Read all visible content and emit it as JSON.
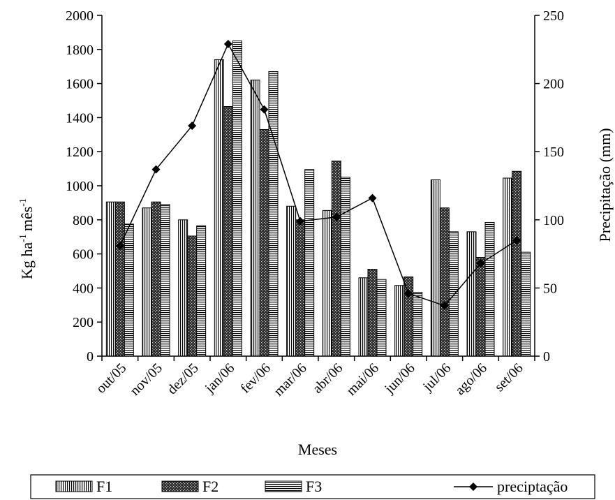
{
  "chart_data": {
    "type": "bar",
    "categories": [
      "out/05",
      "nov/05",
      "dez/05",
      "jan/06",
      "fev/06",
      "mar/06",
      "abr/06",
      "mai/06",
      "jun/06",
      "jul/06",
      "ago/06",
      "set/06"
    ],
    "series": [
      {
        "name": "F1",
        "values": [
          905,
          870,
          800,
          1740,
          1620,
          880,
          855,
          460,
          415,
          1035,
          730,
          1045
        ]
      },
      {
        "name": "F2",
        "values": [
          905,
          905,
          705,
          1465,
          1330,
          800,
          1145,
          510,
          465,
          870,
          580,
          1085
        ]
      },
      {
        "name": "F3",
        "values": [
          775,
          890,
          765,
          1850,
          1670,
          1095,
          1050,
          450,
          375,
          730,
          785,
          610
        ]
      }
    ],
    "line_series": {
      "name": "preciptação",
      "axis": "right",
      "values": [
        81,
        137,
        169,
        229,
        181,
        99,
        102,
        116,
        46,
        37,
        68,
        85
      ]
    },
    "xlabel": "Meses",
    "ylabel_left": "Kg ha-1 mês-1",
    "ylabel_left_parts": {
      "kg": "Kg ha",
      "sup1": "-1",
      "mes": "mês",
      "sup2": "-1"
    },
    "ylabel_right": "Precipitação (mm)",
    "ylim_left": [
      0,
      2000
    ],
    "ylim_right": [
      0,
      250
    ],
    "yticks_left": [
      0,
      200,
      400,
      600,
      800,
      1000,
      1200,
      1400,
      1600,
      1800,
      2000
    ],
    "yticks_right": [
      0,
      50,
      100,
      150,
      200,
      250
    ],
    "legend_position": "bottom",
    "grid": false
  }
}
